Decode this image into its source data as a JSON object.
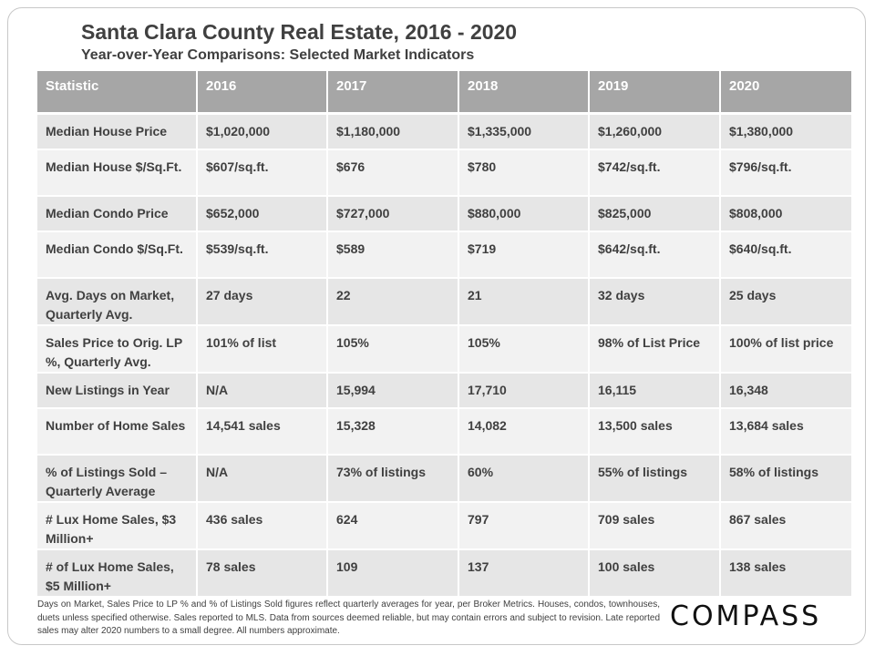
{
  "title": "Santa Clara County Real Estate, 2016 - 2020",
  "subtitle": "Year-over-Year  Comparisons:  Selected Market Indicators",
  "table": {
    "headers": [
      "Statistic",
      "2016",
      "2017",
      "2018",
      "2019",
      "2020"
    ],
    "rows": [
      [
        "Median House Price",
        "$1,020,000",
        "$1,180,000",
        "$1,335,000",
        "$1,260,000",
        "$1,380,000"
      ],
      [
        "Median House $/Sq.Ft.",
        "$607/sq.ft.",
        "$676",
        "$780",
        "$742/sq.ft.",
        "$796/sq.ft."
      ],
      [
        "Median Condo Price",
        "$652,000",
        "$727,000",
        "$880,000",
        "$825,000",
        "$808,000"
      ],
      [
        "Median Condo $/Sq.Ft.",
        "$539/sq.ft.",
        "$589",
        "$719",
        "$642/sq.ft.",
        "$640/sq.ft."
      ],
      [
        "Avg. Days on Market, Quarterly Avg.",
        "27 days",
        "22",
        "21",
        "32 days",
        "25 days"
      ],
      [
        "Sales Price to Orig. LP %, Quarterly Avg.",
        "101% of list",
        "105%",
        "105%",
        "98% of List Price",
        "100% of list price"
      ],
      [
        "New Listings in Year",
        "N/A",
        "15,994",
        "17,710",
        "16,115",
        "16,348"
      ],
      [
        "Number of Home Sales",
        "14,541 sales",
        "15,328",
        "14,082",
        "13,500 sales",
        "13,684 sales"
      ],
      [
        "% of Listings Sold – Quarterly Average",
        "N/A",
        "73% of listings",
        "60%",
        "55% of listings",
        "58% of listings"
      ],
      [
        "# Lux Home Sales, $3 Million+",
        "436 sales",
        "624",
        "797",
        "709 sales",
        "867 sales"
      ],
      [
        "# of Lux Home Sales, $5 Million+",
        "78 sales",
        "109",
        "137",
        "100 sales",
        "138 sales"
      ]
    ]
  },
  "footnote": "Days on Market, Sales Price to LP % and % of Listings Sold figures reflect quarterly averages for year, per Broker Metrics. Houses, condos, townhouses, duets unless specified otherwise. Sales reported to MLS. Data from sources deemed reliable, but may contain errors and subject to revision. Late reported sales may alter 2020 numbers to a small degree. All numbers approximate.",
  "logo_text": "COMPASS"
}
